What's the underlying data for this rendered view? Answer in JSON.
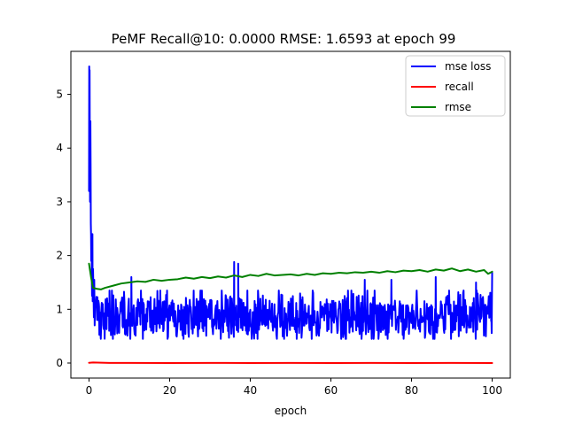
{
  "chart_data": {
    "type": "line",
    "title": "PeMF Recall@10: 0.0000 RMSE: 1.6593 at epoch 99",
    "xlabel": "epoch",
    "ylabel": "",
    "xlim": [
      -4.5,
      104.5
    ],
    "ylim": [
      -0.28,
      5.8
    ],
    "x_ticks": [
      0,
      20,
      40,
      60,
      80,
      100
    ],
    "y_ticks": [
      0,
      1,
      2,
      3,
      4,
      5
    ],
    "legend_position": "top-right",
    "series": [
      {
        "name": "mse loss",
        "color": "#0000ff",
        "kind": "noisy",
        "description_points": [
          [
            0.0,
            3.2
          ],
          [
            0.05,
            5.52
          ],
          [
            0.1,
            4.6
          ],
          [
            0.15,
            5.45
          ],
          [
            0.2,
            3.9
          ],
          [
            0.25,
            3.0
          ],
          [
            0.3,
            4.1
          ],
          [
            0.35,
            4.5
          ],
          [
            0.4,
            3.7
          ],
          [
            0.45,
            2.6
          ],
          [
            0.5,
            2.4
          ],
          [
            0.55,
            1.9
          ],
          [
            0.6,
            2.0
          ],
          [
            0.65,
            2.3
          ],
          [
            0.7,
            1.5
          ],
          [
            0.75,
            1.25
          ],
          [
            0.8,
            1.6
          ],
          [
            0.85,
            2.4
          ],
          [
            0.9,
            1.15
          ],
          [
            1.0,
            1.75
          ],
          [
            1.1,
            1.35
          ],
          [
            1.2,
            0.85
          ],
          [
            1.3,
            1.55
          ],
          [
            1.4,
            0.7
          ],
          [
            1.5,
            1.1
          ],
          [
            2.0,
            0.8
          ],
          [
            2.5,
            1.05
          ],
          [
            3.0,
            0.65
          ],
          [
            4.0,
            0.95
          ],
          [
            5.0,
            0.6
          ],
          [
            6.0,
            1.1
          ],
          [
            7.0,
            0.55
          ],
          [
            8.0,
            1.15
          ],
          [
            10.0,
            0.8
          ],
          [
            10.5,
            1.6
          ],
          [
            12.0,
            0.75
          ],
          [
            20.0,
            0.85
          ],
          [
            30.0,
            0.82
          ],
          [
            35.0,
            1.0
          ],
          [
            36.0,
            1.88
          ],
          [
            36.4,
            0.7
          ],
          [
            37.0,
            1.85
          ],
          [
            40.0,
            0.86
          ],
          [
            50.0,
            0.85
          ],
          [
            60.0,
            0.84
          ],
          [
            68.0,
            0.9
          ],
          [
            68.4,
            1.55
          ],
          [
            70.0,
            0.82
          ],
          [
            75.0,
            1.55
          ],
          [
            80.0,
            0.85
          ],
          [
            86.0,
            1.6
          ],
          [
            90.0,
            0.85
          ],
          [
            96.0,
            1.5
          ],
          [
            99.8,
            0.9
          ],
          [
            100.0,
            1.68
          ]
        ]
      },
      {
        "name": "recall",
        "color": "#ff0000",
        "kind": "line",
        "x": [
          0,
          1,
          5,
          10,
          20,
          30,
          40,
          50,
          60,
          70,
          80,
          90,
          100
        ],
        "y": [
          0.005,
          0.01,
          0.002,
          0.003,
          0.001,
          0.002,
          0.001,
          0.002,
          0.001,
          0.002,
          0.001,
          0.003,
          0.001
        ]
      },
      {
        "name": "rmse",
        "color": "#008000",
        "kind": "line",
        "x": [
          0,
          0.5,
          1,
          2,
          3,
          4,
          6,
          8,
          10,
          12,
          14,
          16,
          18,
          20,
          22,
          24,
          26,
          28,
          30,
          32,
          34,
          36,
          38,
          40,
          42,
          44,
          46,
          48,
          50,
          52,
          54,
          56,
          58,
          60,
          62,
          64,
          66,
          68,
          70,
          72,
          74,
          76,
          78,
          80,
          82,
          84,
          86,
          88,
          90,
          92,
          94,
          96,
          98,
          99,
          100
        ],
        "y": [
          1.85,
          1.6,
          1.4,
          1.38,
          1.37,
          1.4,
          1.44,
          1.48,
          1.5,
          1.52,
          1.51,
          1.55,
          1.53,
          1.55,
          1.56,
          1.59,
          1.57,
          1.6,
          1.58,
          1.61,
          1.59,
          1.63,
          1.6,
          1.64,
          1.62,
          1.66,
          1.63,
          1.64,
          1.65,
          1.63,
          1.66,
          1.64,
          1.67,
          1.66,
          1.68,
          1.67,
          1.69,
          1.68,
          1.7,
          1.68,
          1.71,
          1.69,
          1.72,
          1.71,
          1.73,
          1.7,
          1.74,
          1.72,
          1.76,
          1.71,
          1.74,
          1.7,
          1.73,
          1.66,
          1.7
        ]
      }
    ]
  }
}
